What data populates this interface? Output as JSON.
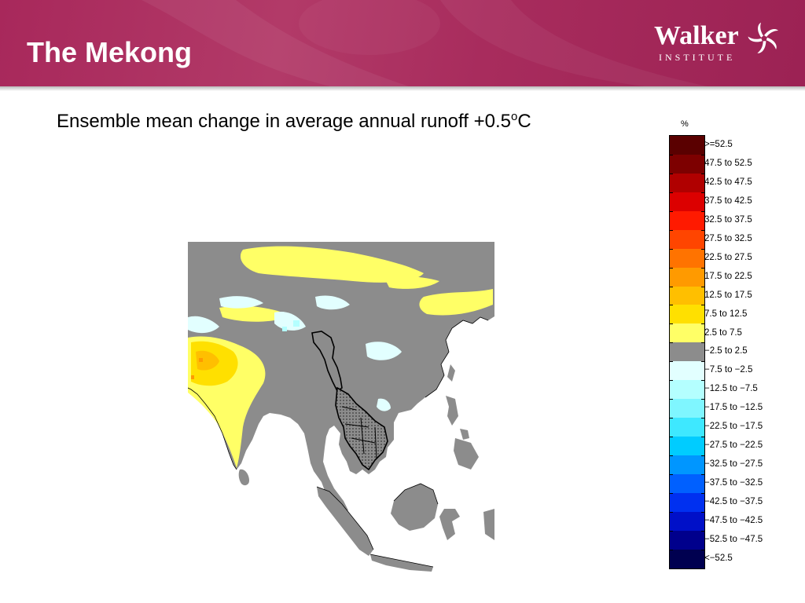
{
  "header": {
    "title": "The Mekong"
  },
  "logo": {
    "name": "Walker",
    "subtitle": "INSTITUTE"
  },
  "figure": {
    "title": "Ensemble mean change in average annual runoff +0.5",
    "degree": "o",
    "unit": "C"
  },
  "legend": {
    "unit": "%",
    "classes": [
      {
        "label": ">=52.5",
        "color": "#5a0000"
      },
      {
        "label": "47.5 to 52.5",
        "color": "#7d0000"
      },
      {
        "label": "42.5 to 47.5",
        "color": "#b00000"
      },
      {
        "label": "37.5 to 42.5",
        "color": "#dc0000"
      },
      {
        "label": "32.5 to 37.5",
        "color": "#ff1a00"
      },
      {
        "label": "27.5 to 32.5",
        "color": "#ff4500"
      },
      {
        "label": "22.5 to 27.5",
        "color": "#ff7300"
      },
      {
        "label": "17.5 to 22.5",
        "color": "#ff9a00"
      },
      {
        "label": "12.5 to 17.5",
        "color": "#ffbf00"
      },
      {
        "label": "7.5 to 12.5",
        "color": "#ffe000"
      },
      {
        "label": "2.5 to 7.5",
        "color": "#ffff66"
      },
      {
        "label": "−2.5 to 2.5",
        "color": "#8c8c8c"
      },
      {
        "label": "−7.5 to −2.5",
        "color": "#e2ffff"
      },
      {
        "label": "−12.5 to −7.5",
        "color": "#b4ffff"
      },
      {
        "label": "−17.5 to −12.5",
        "color": "#7ff6ff"
      },
      {
        "label": "−22.5 to −17.5",
        "color": "#3ee8ff"
      },
      {
        "label": "−27.5 to −22.5",
        "color": "#00ccff"
      },
      {
        "label": "−32.5 to −27.5",
        "color": "#0096ff"
      },
      {
        "label": "−37.5 to −32.5",
        "color": "#0060ff"
      },
      {
        "label": "−42.5 to −37.5",
        "color": "#0030f0"
      },
      {
        "label": "−47.5 to −42.5",
        "color": "#0010c8"
      },
      {
        "label": "−52.5 to −47.5",
        "color": "#00008c"
      },
      {
        "label": "<−52.5",
        "color": "#000050"
      }
    ]
  },
  "map": {
    "region": "South and Southeast Asia",
    "highlight": "Mekong basin"
  }
}
